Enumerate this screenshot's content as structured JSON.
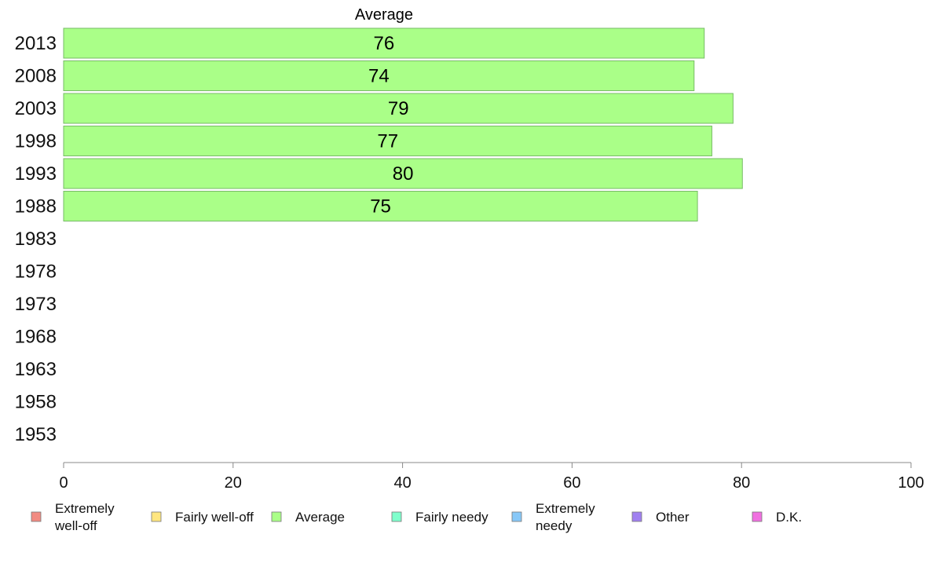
{
  "chart_data": {
    "type": "bar",
    "orientation": "horizontal",
    "title": "Average",
    "categories": [
      "2013",
      "2008",
      "2003",
      "1998",
      "1993",
      "1988",
      "1983",
      "1978",
      "1973",
      "1968",
      "1963",
      "1958",
      "1953"
    ],
    "series": [
      {
        "name": "Average",
        "values": [
          75.6,
          74.4,
          79.0,
          76.5,
          80.1,
          74.8,
          null,
          null,
          null,
          null,
          null,
          null,
          null
        ]
      }
    ],
    "data_labels": [
      "76",
      "74",
      "79",
      "77",
      "80",
      "75",
      "",
      "",
      "",
      "",
      "",
      "",
      ""
    ],
    "xlim": [
      0,
      100
    ],
    "x_ticks": [
      0,
      20,
      40,
      60,
      80,
      100
    ],
    "grid": false,
    "legend": {
      "placement": "bottom",
      "entries": [
        {
          "label": [
            "Extremely",
            "well-off"
          ],
          "color": "#f28b82"
        },
        {
          "label": [
            "Fairly well-off"
          ],
          "color": "#ffe680"
        },
        {
          "label": [
            "Average"
          ],
          "color": "#aaff88"
        },
        {
          "label": [
            "Fairly needy"
          ],
          "color": "#7fffcc"
        },
        {
          "label": [
            "Extremely",
            "needy"
          ],
          "color": "#88c8f8"
        },
        {
          "label": [
            "Other"
          ],
          "color": "#a080f0"
        },
        {
          "label": [
            "D.K."
          ],
          "color": "#f070e0"
        }
      ]
    },
    "bar_color": "#aaff88",
    "bar_stroke": "#77bb66"
  }
}
